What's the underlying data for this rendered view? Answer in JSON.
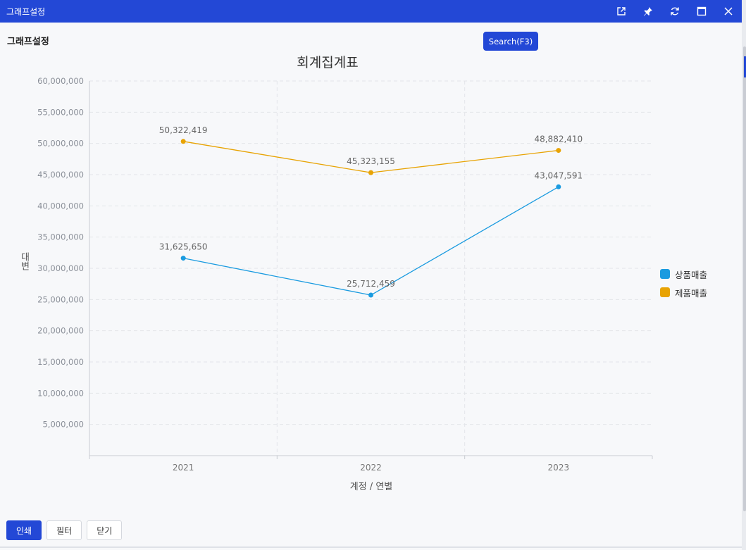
{
  "window": {
    "title": "그래프설정"
  },
  "page": {
    "heading": "그래프설정",
    "search_label": "Search(F3)"
  },
  "toolbar_icons": [
    "external-link-icon",
    "pin-icon",
    "refresh-icon",
    "maximize-icon",
    "close-icon"
  ],
  "footer": {
    "print_label": "인쇄",
    "filter_label": "필터",
    "close_label": "닫기"
  },
  "colors": {
    "accent": "#2348d6",
    "series1": "#1a9be0",
    "series2": "#e8a303"
  },
  "chart_data": {
    "type": "line",
    "title": "회계집계표",
    "xlabel": "계정 / 연별",
    "ylabel": "대변",
    "categories": [
      "2021",
      "2022",
      "2023"
    ],
    "series": [
      {
        "name": "상품매출",
        "values": [
          31625650,
          25712459,
          43047591
        ],
        "labels": [
          "31,625,650",
          "25,712,459",
          "43,047,591"
        ]
      },
      {
        "name": "제품매출",
        "values": [
          50322419,
          45323155,
          48882410
        ],
        "labels": [
          "50,322,419",
          "45,323,155",
          "48,882,410"
        ]
      }
    ],
    "ylim": [
      0,
      60000000
    ],
    "yticks": [
      "5,000,000",
      "10,000,000",
      "15,000,000",
      "20,000,000",
      "25,000,000",
      "30,000,000",
      "35,000,000",
      "40,000,000",
      "45,000,000",
      "50,000,000",
      "55,000,000",
      "60,000,000"
    ],
    "grid": true,
    "legend": "right"
  }
}
